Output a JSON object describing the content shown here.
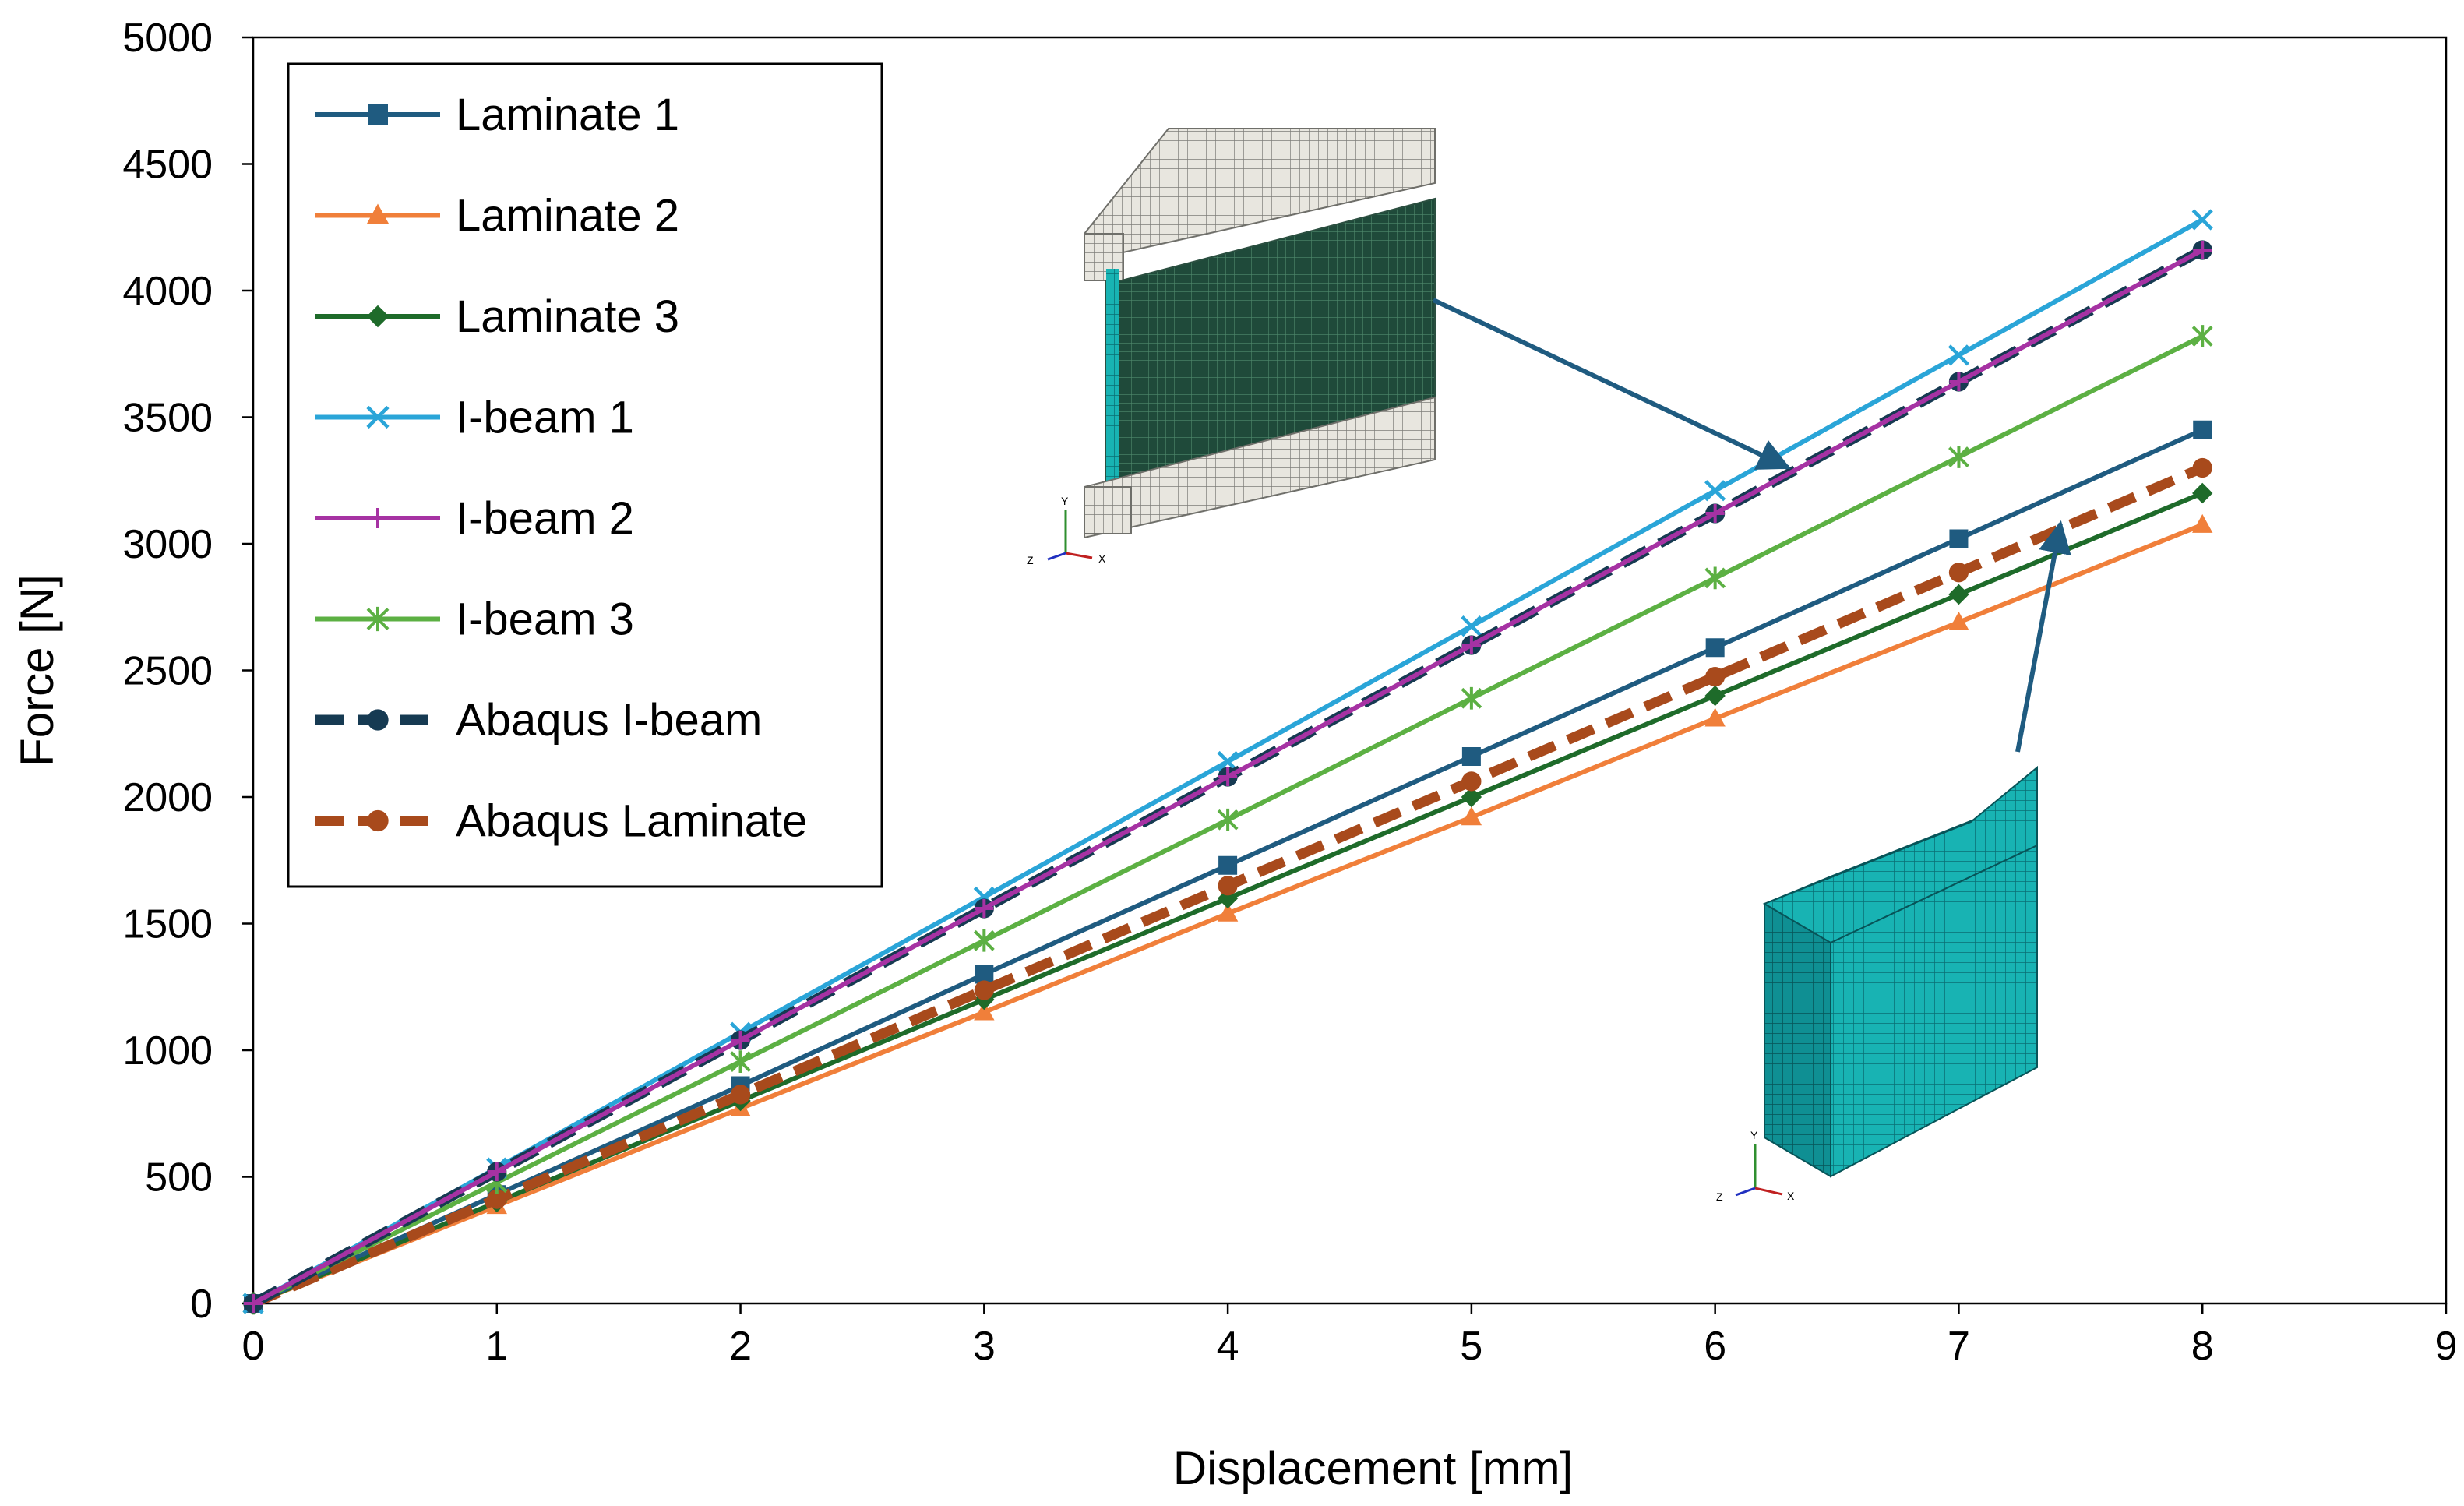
{
  "chart_data": {
    "type": "line",
    "title": "",
    "xlabel": "Displacement [mm]",
    "ylabel": "Force [N]",
    "xlim": [
      0,
      9
    ],
    "ylim": [
      0,
      5000
    ],
    "xticks": [
      "0",
      "1",
      "2",
      "3",
      "4",
      "5",
      "6",
      "7",
      "8",
      "9"
    ],
    "yticks": [
      "0",
      "500",
      "1000",
      "1500",
      "2000",
      "2500",
      "3000",
      "3500",
      "4000",
      "4500",
      "5000"
    ],
    "grid": false,
    "legend_position": "top-left",
    "x": [
      0,
      1,
      2,
      3,
      4,
      5,
      6,
      7,
      8
    ],
    "series": [
      {
        "name": "Laminate 1",
        "color": "#1f5b80",
        "marker": "square",
        "dash": "solid",
        "values": [
          0,
          430,
          860,
          1300,
          1730,
          2160,
          2590,
          3020,
          3450
        ]
      },
      {
        "name": "Laminate 2",
        "color": "#f07f3a",
        "marker": "triangle",
        "dash": "solid",
        "values": [
          0,
          385,
          770,
          1150,
          1540,
          1920,
          2310,
          2690,
          3075
        ]
      },
      {
        "name": "Laminate 3",
        "color": "#1e6b2a",
        "marker": "diamond",
        "dash": "solid",
        "values": [
          0,
          400,
          800,
          1200,
          1600,
          2000,
          2400,
          2800,
          3200
        ]
      },
      {
        "name": "I-beam 1",
        "color": "#2aa5d8",
        "marker": "x",
        "dash": "solid",
        "values": [
          0,
          535,
          1070,
          1605,
          2140,
          2675,
          3210,
          3745,
          4280
        ]
      },
      {
        "name": "I-beam 2",
        "color": "#a632a3",
        "marker": "plus",
        "dash": "solid",
        "values": [
          0,
          520,
          1040,
          1560,
          2080,
          2600,
          3120,
          3640,
          4160
        ]
      },
      {
        "name": "I-beam 3",
        "color": "#5cb043",
        "marker": "star",
        "dash": "solid",
        "values": [
          0,
          478,
          955,
          1433,
          1910,
          2390,
          2865,
          3343,
          3820
        ]
      },
      {
        "name": "Abaqus I-beam",
        "color": "#163a52",
        "marker": "circle",
        "dash": "dashed",
        "values": [
          0,
          520,
          1040,
          1560,
          2080,
          2600,
          3120,
          3640,
          4160
        ]
      },
      {
        "name": "Abaqus Laminate",
        "color": "#a84a1c",
        "marker": "circle",
        "dash": "dashed",
        "values": [
          0,
          412,
          825,
          1237,
          1650,
          2062,
          2475,
          2887,
          3300
        ]
      }
    ],
    "annotations": [
      {
        "type": "image",
        "depicts": "I-beam finite element mesh",
        "axes_labels": [
          "Y",
          "Z",
          "X"
        ]
      },
      {
        "type": "image",
        "depicts": "laminate block finite element mesh",
        "axes_labels": [
          "Y",
          "Z",
          "X"
        ]
      }
    ]
  }
}
